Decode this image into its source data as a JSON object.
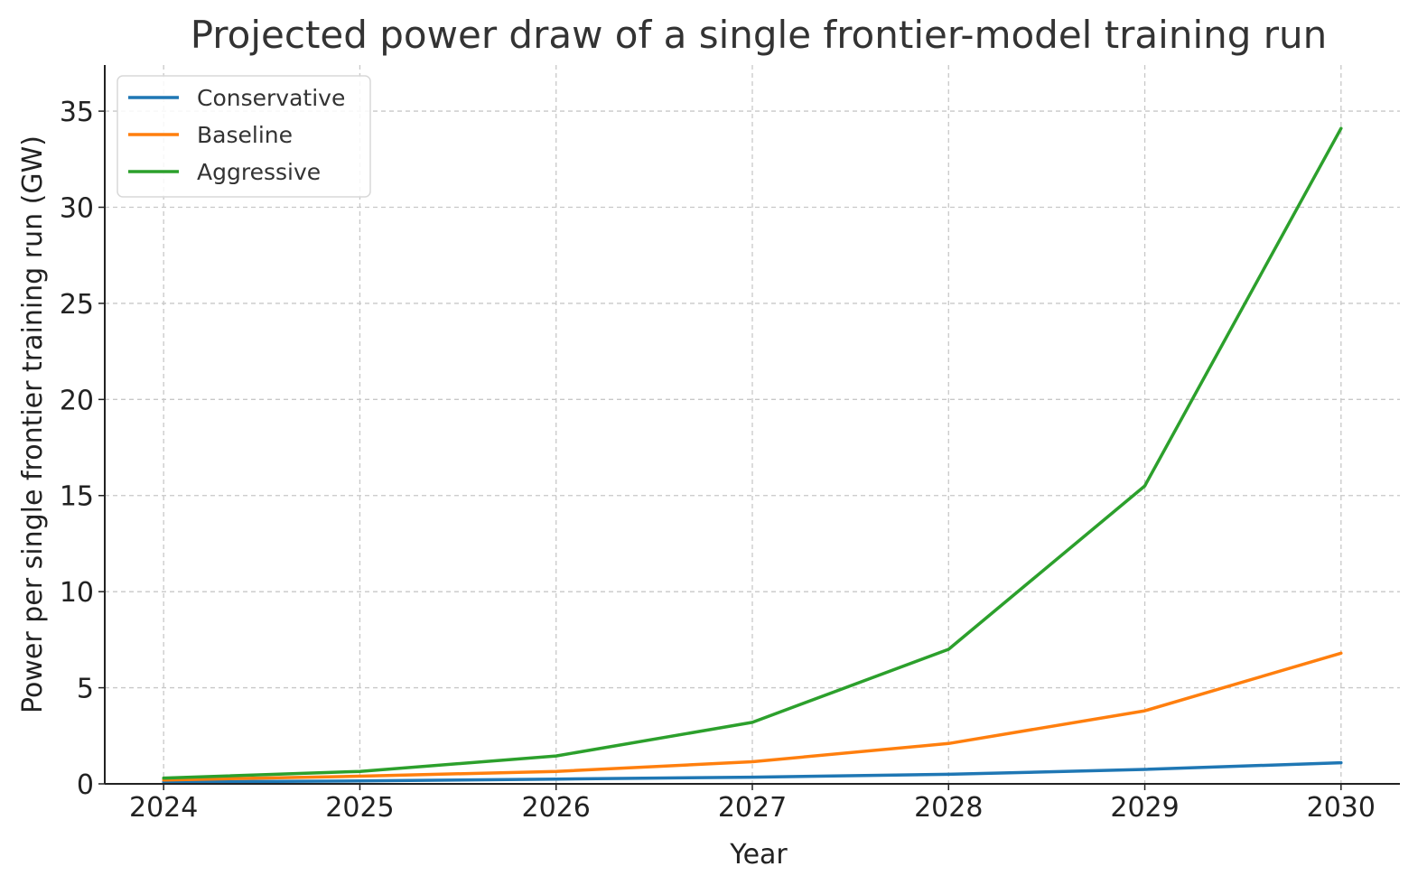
{
  "chart_data": {
    "type": "line",
    "title": "Projected power draw of a single frontier-model training run",
    "xlabel": "Year",
    "ylabel": "Power per single frontier training run (GW)",
    "x": [
      2024,
      2025,
      2026,
      2027,
      2028,
      2029,
      2030
    ],
    "x_ticks": [
      "2024",
      "2025",
      "2026",
      "2027",
      "2028",
      "2029",
      "2030"
    ],
    "y_ticks": [
      "0",
      "5",
      "10",
      "15",
      "20",
      "25",
      "30",
      "35"
    ],
    "xlim": [
      2023.7,
      2030.3
    ],
    "ylim": [
      0,
      37.4
    ],
    "grid": true,
    "legend_position": "top-left",
    "series": [
      {
        "name": "Conservative",
        "color": "#1f77b4",
        "values": [
          0.1,
          0.15,
          0.25,
          0.35,
          0.5,
          0.75,
          1.1
        ]
      },
      {
        "name": "Baseline",
        "color": "#ff7f0e",
        "values": [
          0.2,
          0.4,
          0.65,
          1.15,
          2.1,
          3.8,
          6.8
        ]
      },
      {
        "name": "Aggressive",
        "color": "#2ca02c",
        "values": [
          0.3,
          0.65,
          1.45,
          3.2,
          7.0,
          15.5,
          34.1
        ]
      }
    ]
  }
}
